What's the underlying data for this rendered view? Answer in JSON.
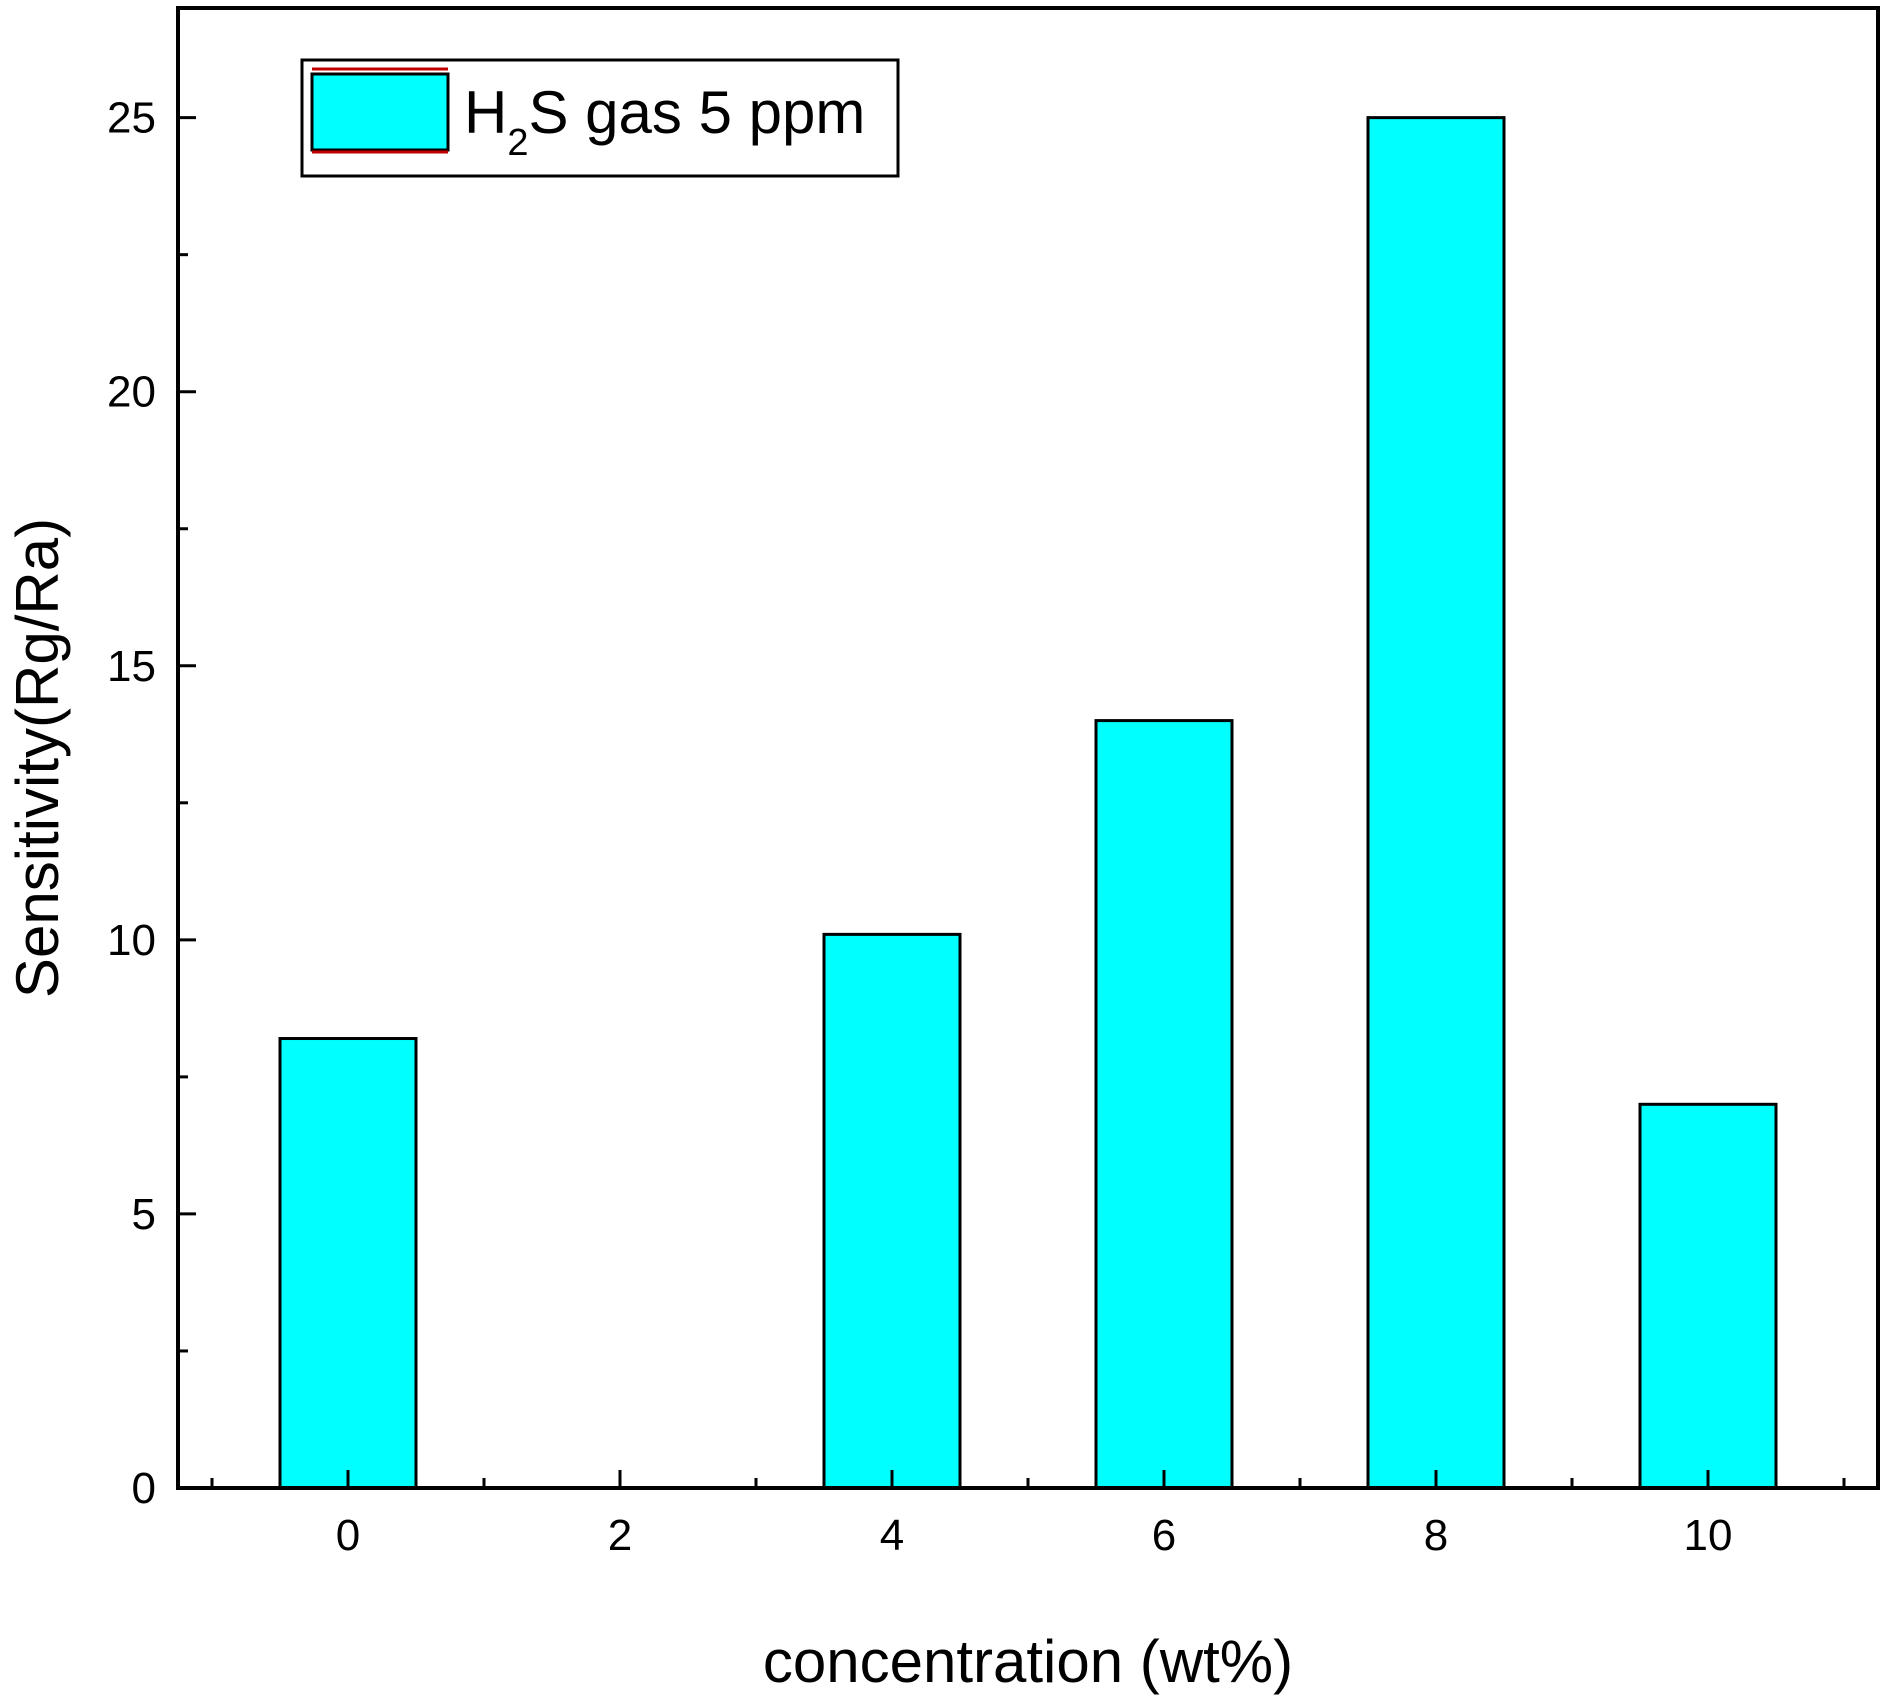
{
  "chart_data": {
    "type": "bar",
    "title": "",
    "xlabel": "concentration (wt%)",
    "ylabel": "Sensitivity(Rg/Ra)",
    "categories": [
      "0",
      "2",
      "4",
      "6",
      "8",
      "10"
    ],
    "x": [
      0,
      2,
      4,
      6,
      8,
      10
    ],
    "series": [
      {
        "name_parts": {
          "element": "H",
          "subscript": "2",
          "rest": "S gas 5 ppm"
        },
        "values": [
          8.2,
          0,
          10.1,
          14.0,
          25.0,
          7.0
        ],
        "fill": "#00ffff",
        "stroke": "#000000"
      }
    ],
    "xlim": [
      -1.25,
      11.25
    ],
    "ylim": [
      0,
      27
    ],
    "yticks": [
      0,
      5,
      10,
      15,
      20,
      25
    ],
    "ytick_labels": [
      "0",
      "5",
      "10",
      "15",
      "20",
      "25"
    ],
    "y_minor_step": 2.5,
    "x_minor_step": 1,
    "bar_width": 1.0,
    "grid": false,
    "legend_position": "top-left",
    "legend_swatch_border": "#c00000",
    "axis_color": "#000000"
  }
}
